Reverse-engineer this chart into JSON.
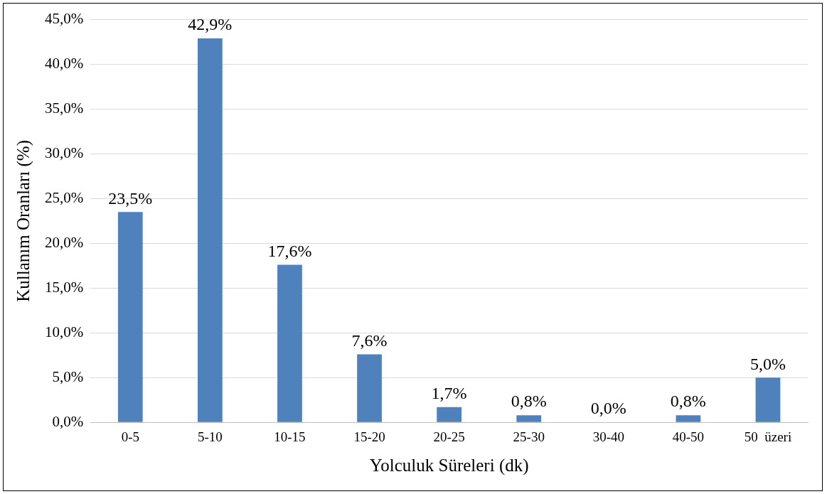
{
  "chart_data": {
    "type": "bar",
    "xlabel": "Yolculuk Süreleri (dk)",
    "ylabel": "Kullanım Oranları (%)",
    "categories": [
      "0-5",
      "5-10",
      "10-15",
      "15-20",
      "20-25",
      "25-30",
      "30-40",
      "40-50",
      "50  üzeri"
    ],
    "values": [
      23.5,
      42.9,
      17.6,
      7.6,
      1.7,
      0.8,
      0.0,
      0.8,
      5.0
    ],
    "value_labels": [
      "23,5%",
      "42,9%",
      "17,6%",
      "7,6%",
      "1,7%",
      "0,8%",
      "0,0%",
      "0,8%",
      "5,0%"
    ],
    "color": "#4f81bd",
    "ylim": [
      0,
      45
    ],
    "yticks": [
      {
        "value": 0,
        "label": "0,0%"
      },
      {
        "value": 5,
        "label": "5,0%"
      },
      {
        "value": 10,
        "label": "10,0%"
      },
      {
        "value": 15,
        "label": "15,0%"
      },
      {
        "value": 20,
        "label": "20,0%"
      },
      {
        "value": 25,
        "label": "25,0%"
      },
      {
        "value": 30,
        "label": "30,0%"
      },
      {
        "value": 35,
        "label": "35,0%"
      },
      {
        "value": 40,
        "label": "40,0%"
      },
      {
        "value": 45,
        "label": "45,0%"
      }
    ],
    "grid": "y",
    "legend": false
  }
}
